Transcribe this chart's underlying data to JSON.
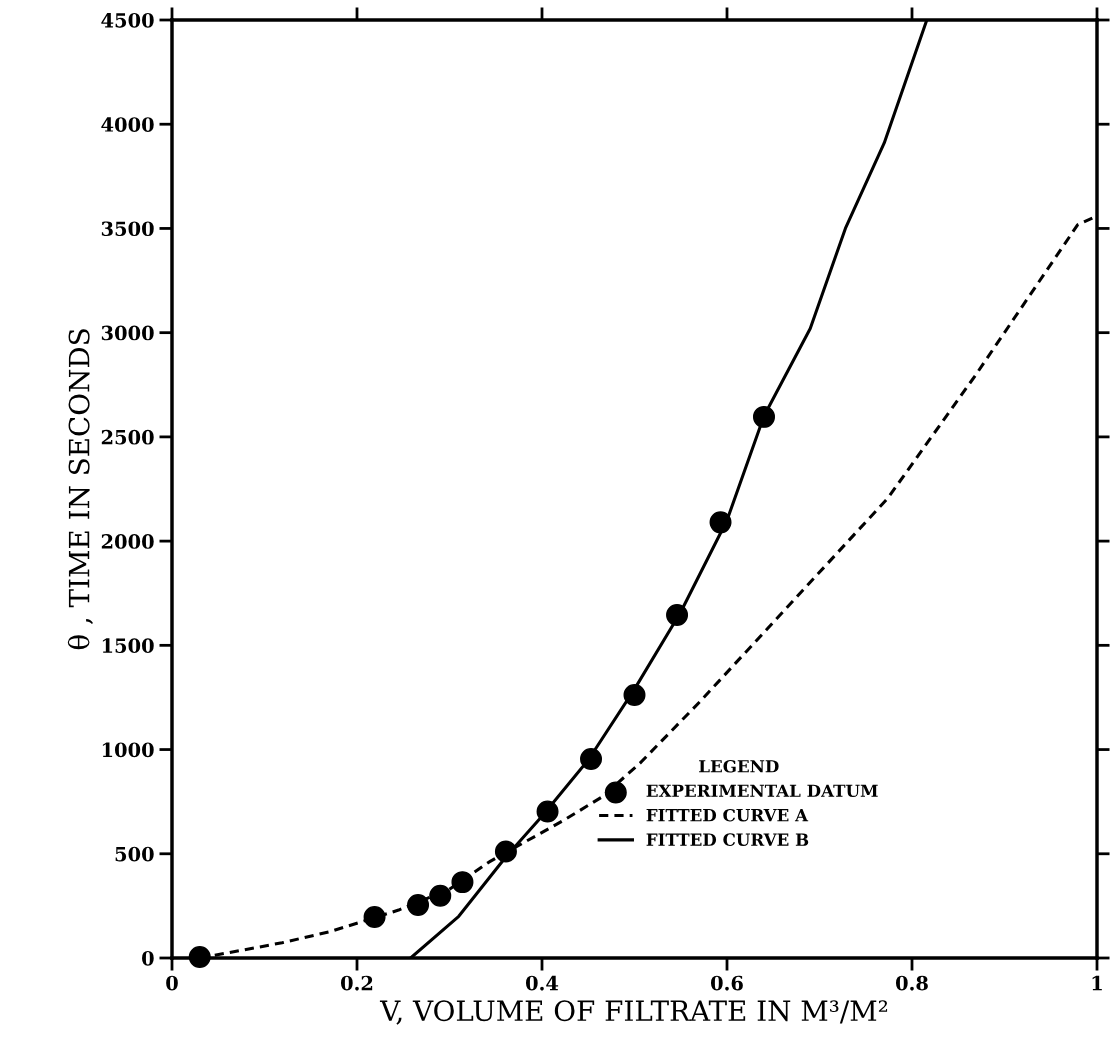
{
  "chart_data": {
    "type": "scatter",
    "xlabel": "V, VOLUME OF FILTRATE IN M³/M²",
    "ylabel": "θ , TIME IN SECONDS",
    "legend_title": "LEGEND",
    "xlim": [
      0,
      1
    ],
    "ylim": [
      0,
      4500
    ],
    "xticks": [
      0,
      0.2,
      0.4,
      0.6,
      0.8,
      1
    ],
    "yticks": [
      0,
      500,
      1000,
      1500,
      2000,
      2500,
      3000,
      3500,
      4000,
      4500
    ],
    "grid": false,
    "legend": "lower right",
    "series": [
      {
        "name": "EXPERIMENTAL DATUM",
        "marker": "circle",
        "color": "#000000",
        "x": [
          0.03,
          0.219,
          0.266,
          0.29,
          0.314,
          0.361,
          0.406,
          0.453,
          0.5,
          0.546,
          0.593,
          0.64
        ],
        "values": [
          5,
          197,
          254,
          299,
          364,
          511,
          703,
          955,
          1262,
          1646,
          2090,
          2596
        ]
      },
      {
        "name": "FITTED CURVE A",
        "type": "line",
        "line_style": "dashed",
        "color": "#000000",
        "x": [
          0.03,
          0.119,
          0.172,
          0.245,
          0.3,
          0.343,
          0.424,
          0.465,
          0.506,
          0.571,
          0.65,
          0.774,
          0.869,
          0.979,
          1.0
        ],
        "values": [
          0,
          73,
          128,
          230,
          330,
          461,
          662,
          773,
          935,
          1231,
          1610,
          2207,
          2798,
          3517,
          3560
        ]
      },
      {
        "name": "FITTED CURVE B",
        "type": "line",
        "line_style": "solid",
        "color": "#000000",
        "x": [
          0.258,
          0.31,
          0.36,
          0.4,
          0.45,
          0.5,
          0.55,
          0.6,
          0.64,
          0.69,
          0.728,
          0.77,
          0.816
        ],
        "values": [
          0,
          200,
          480,
          680,
          950,
          1290,
          1660,
          2100,
          2600,
          3020,
          3500,
          3910,
          4500
        ]
      }
    ]
  }
}
